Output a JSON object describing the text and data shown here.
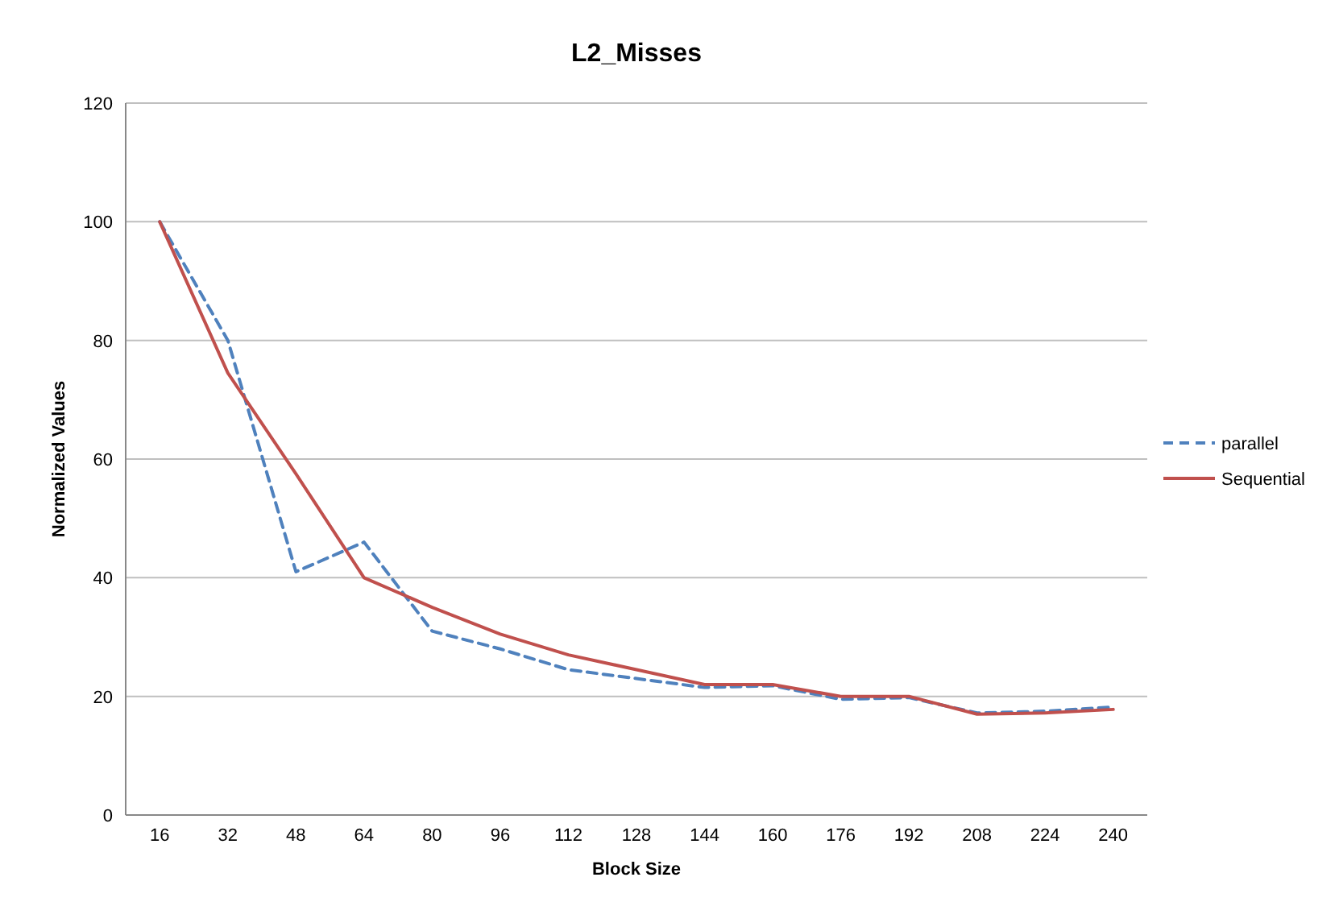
{
  "chart_data": {
    "type": "line",
    "title": "L2_Misses",
    "xlabel": "Block Size",
    "ylabel": "Normalized Values",
    "categories": [
      "16",
      "32",
      "48",
      "64",
      "80",
      "96",
      "112",
      "128",
      "144",
      "160",
      "176",
      "192",
      "208",
      "224",
      "240"
    ],
    "series": [
      {
        "name": "parallel",
        "color": "#4f81bd",
        "line_style": "dashed",
        "values": [
          100,
          80,
          41,
          46,
          31,
          28,
          24.5,
          23,
          21.5,
          21.8,
          19.5,
          19.8,
          17.2,
          17.5,
          18.2
        ]
      },
      {
        "name": "Sequential",
        "color": "#c0504d",
        "line_style": "solid",
        "values": [
          100,
          74.5,
          57.5,
          40,
          35,
          30.5,
          27,
          24.5,
          22,
          22,
          20,
          20,
          17,
          17.2,
          17.8
        ]
      }
    ],
    "ylim": [
      0,
      120
    ],
    "yticks": [
      0,
      20,
      40,
      60,
      80,
      100,
      120
    ],
    "grid": "y",
    "legend": "right"
  }
}
